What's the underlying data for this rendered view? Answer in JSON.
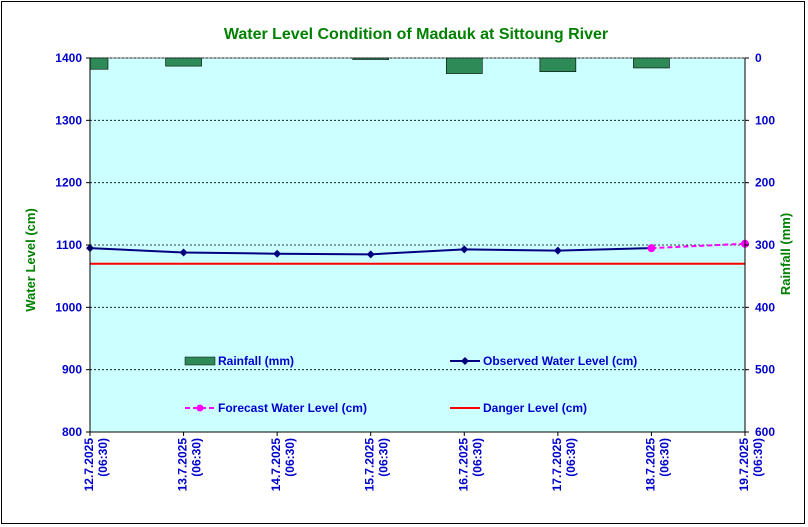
{
  "chart_data": {
    "type": "line",
    "title": "Water Level Condition of Madauk at Sittoung River",
    "ylabel": "Water Level (cm)",
    "y2label": "Rainfall (mm)",
    "ylim": [
      800,
      1400
    ],
    "y2lim": [
      0,
      600
    ],
    "y2_inverted": true,
    "yticks": [
      800,
      900,
      1000,
      1100,
      1200,
      1300,
      1400
    ],
    "y2ticks": [
      0,
      100,
      200,
      300,
      400,
      500,
      600
    ],
    "grid": true,
    "legend_position": "inside-bottom",
    "x_dates": [
      "12.7.2025",
      "13.7.2025",
      "14.7.2025",
      "15.7.2025",
      "16.7.2025",
      "17.7.2025",
      "18.7.2025",
      "19.7.2025"
    ],
    "x_times": [
      "(06:30)",
      "(06:30)",
      "(06:30)",
      "(06:30)",
      "(06:30)",
      "(06:30)",
      "(06:30)",
      "(06:30)"
    ],
    "series": [
      {
        "name": "Rainfall (mm)",
        "type": "bar",
        "axis": "right",
        "color": "#2e8b57",
        "values": [
          18,
          13,
          null,
          2,
          25,
          22,
          16,
          null
        ]
      },
      {
        "name": "Observed Water Level (cm)",
        "type": "line",
        "axis": "left",
        "color": "#000080",
        "marker": "diamond",
        "values": [
          1095,
          1088,
          1086,
          1085,
          1093,
          1091,
          1095,
          null
        ]
      },
      {
        "name": "Forecast Water Level (cm)",
        "type": "line",
        "axis": "left",
        "color": "#ff00ff",
        "dashed": true,
        "marker": "circle",
        "values": [
          null,
          null,
          null,
          null,
          null,
          null,
          1095,
          1102
        ]
      },
      {
        "name": "Danger Level (cm)",
        "type": "line",
        "axis": "left",
        "color": "#ff0000",
        "values": [
          1070,
          1070,
          1070,
          1070,
          1070,
          1070,
          1070,
          1070
        ]
      }
    ]
  },
  "colors": {
    "plot_background": "#ccffff",
    "tick_text": "#0000cc",
    "title_text": "#008000"
  }
}
